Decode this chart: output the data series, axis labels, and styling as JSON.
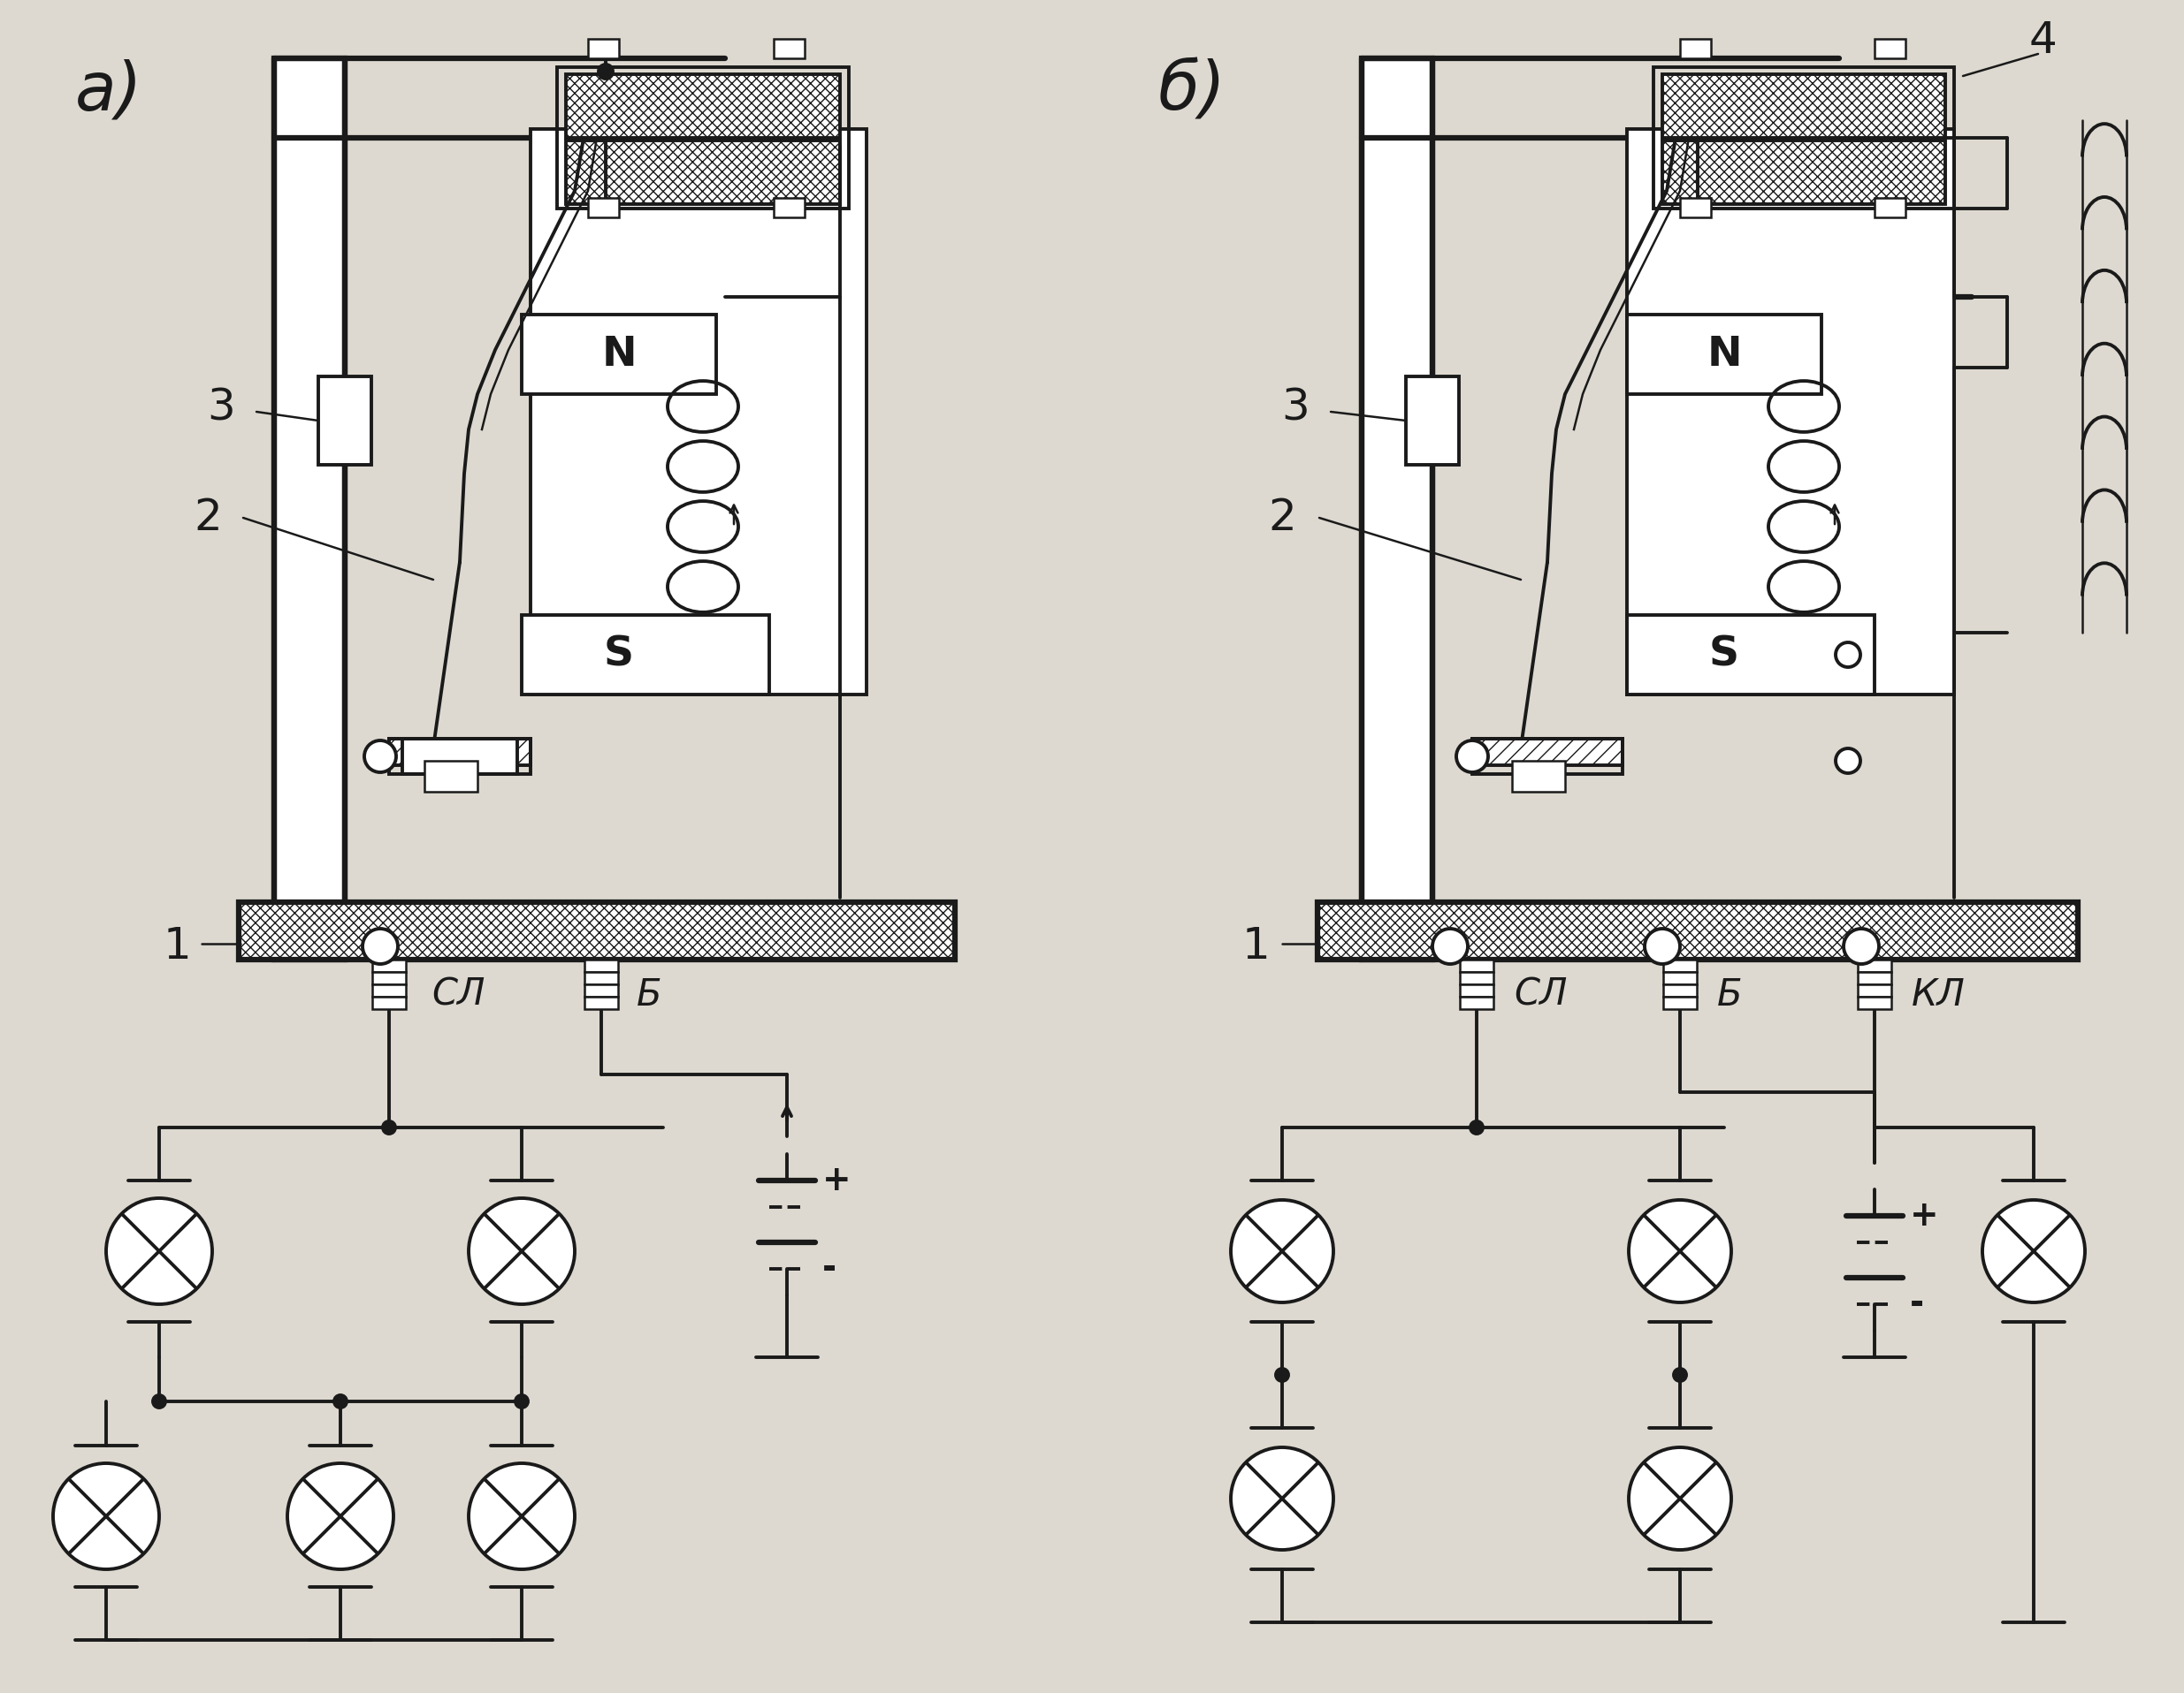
{
  "bg": "#ddd9d0",
  "lc": "#1a1a1a",
  "lw_thin": 1.8,
  "lw_med": 2.8,
  "lw_thick": 4.5,
  "title_a": "а)",
  "title_b": "б)",
  "label_N": "N",
  "label_S": "S",
  "label_1": "1",
  "label_2": "2",
  "label_3": "3",
  "label_4": "4",
  "label_SL": "СЛ",
  "label_B": "Б",
  "label_KL": "КЛ",
  "label_plus": "+",
  "label_minus": "-"
}
